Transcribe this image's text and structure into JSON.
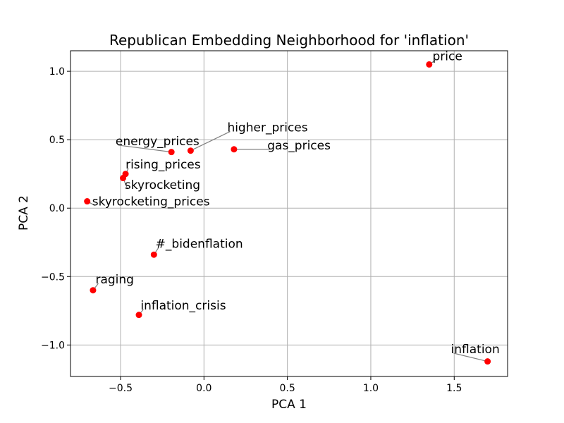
{
  "chart_data": {
    "type": "scatter",
    "title": "Republican Embedding Neighborhood for 'inflation'",
    "xlabel": "PCA 1",
    "ylabel": "PCA 2",
    "xlim": [
      -0.8,
      1.82
    ],
    "ylim": [
      -1.23,
      1.15
    ],
    "xticks": [
      -0.5,
      0.0,
      0.5,
      1.0,
      1.5
    ],
    "yticks": [
      -1.0,
      -0.5,
      0.0,
      0.5,
      1.0
    ],
    "xtick_labels": [
      "−0.5",
      "0.0",
      "0.5",
      "1.0",
      "1.5"
    ],
    "ytick_labels": [
      "−1.0",
      "−0.5",
      "0.0",
      "0.5",
      "1.0"
    ],
    "grid": true,
    "point_color": "#ff0000",
    "leader_color": "#808080",
    "points": [
      {
        "label": "price",
        "x": 1.35,
        "y": 1.05,
        "lx": 1.37,
        "ly": 1.08
      },
      {
        "label": "higher_prices",
        "x": -0.08,
        "y": 0.42,
        "lx": 0.14,
        "ly": 0.56
      },
      {
        "label": "energy_prices",
        "x": -0.195,
        "y": 0.41,
        "lx": -0.53,
        "ly": 0.46
      },
      {
        "label": "gas_prices",
        "x": 0.18,
        "y": 0.43,
        "lx": 0.38,
        "ly": 0.43
      },
      {
        "label": "rising_prices",
        "x": -0.47,
        "y": 0.25,
        "lx": -0.47,
        "ly": 0.29
      },
      {
        "label": "skyrocketing",
        "x": -0.485,
        "y": 0.22,
        "lx": -0.475,
        "ly": 0.14
      },
      {
        "label": "skyrocketing_prices",
        "x": -0.7,
        "y": 0.05,
        "lx": -0.67,
        "ly": 0.02
      },
      {
        "label": "#_bidenflation",
        "x": -0.3,
        "y": -0.34,
        "lx": -0.29,
        "ly": -0.29
      },
      {
        "label": "raging",
        "x": -0.665,
        "y": -0.6,
        "lx": -0.65,
        "ly": -0.55
      },
      {
        "label": "inflation_crisis",
        "x": -0.39,
        "y": -0.78,
        "lx": -0.38,
        "ly": -0.74
      },
      {
        "label": "inflation",
        "x": 1.7,
        "y": -1.12,
        "lx": 1.48,
        "ly": -1.06
      }
    ]
  }
}
